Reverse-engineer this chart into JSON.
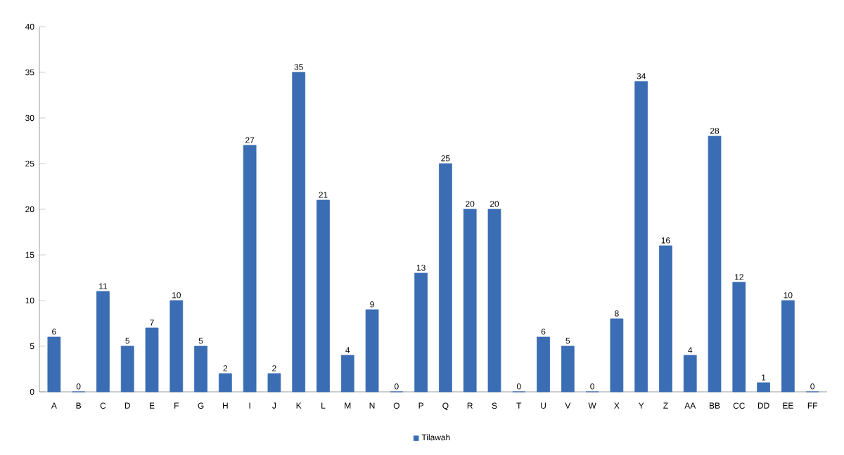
{
  "chart_data": {
    "type": "bar",
    "categories": [
      "A",
      "B",
      "C",
      "D",
      "E",
      "F",
      "G",
      "H",
      "I",
      "J",
      "K",
      "L",
      "M",
      "N",
      "O",
      "P",
      "Q",
      "R",
      "S",
      "T",
      "U",
      "V",
      "W",
      "X",
      "Y",
      "Z",
      "AA",
      "BB",
      "CC",
      "DD",
      "EE",
      "FF"
    ],
    "series": [
      {
        "name": "Tilawah",
        "color": "#3a6db3",
        "values": [
          6,
          0,
          11,
          5,
          7,
          10,
          5,
          2,
          27,
          2,
          35,
          21,
          4,
          9,
          0,
          13,
          25,
          20,
          20,
          0,
          6,
          5,
          0,
          8,
          34,
          16,
          4,
          28,
          12,
          1,
          10,
          0
        ]
      }
    ],
    "ylim": [
      0,
      40
    ],
    "yticks": [
      0,
      5,
      10,
      15,
      20,
      25,
      30,
      35,
      40
    ],
    "data_labels": true,
    "legend": "bottom",
    "grid": false
  }
}
